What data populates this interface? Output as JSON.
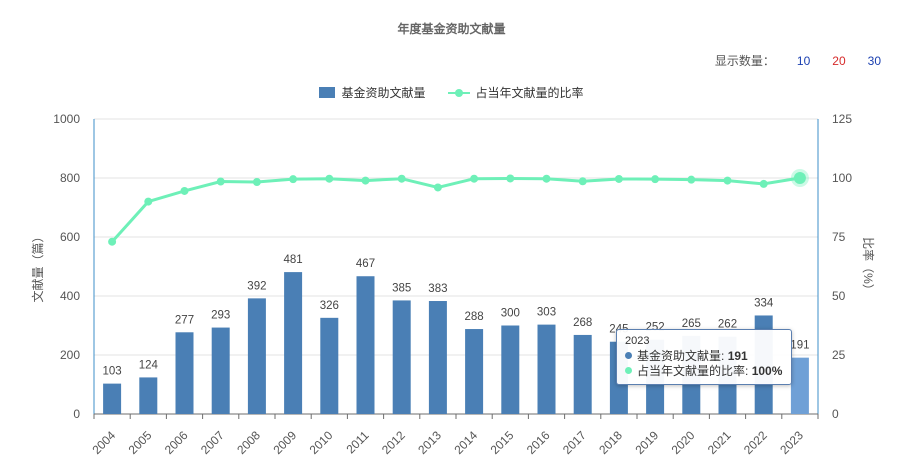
{
  "title": "年度基金资助文献量",
  "count_selector": {
    "label": "显示数量：",
    "options": [
      {
        "label": "10",
        "color": "#1a3fb0"
      },
      {
        "label": "20",
        "color": "#d62a2a"
      },
      {
        "label": "30",
        "color": "#1a3fb0"
      }
    ]
  },
  "colors": {
    "bar": "#4a7fb5",
    "bar_hover": "#6fa0d6",
    "line": "#6ef0b8",
    "axis": "#3d8fc9"
  },
  "chart_data": {
    "type": "bar",
    "categories": [
      "2004",
      "2005",
      "2006",
      "2007",
      "2008",
      "2009",
      "2010",
      "2011",
      "2012",
      "2013",
      "2014",
      "2015",
      "2016",
      "2017",
      "2018",
      "2019",
      "2020",
      "2021",
      "2022",
      "2023"
    ],
    "series": [
      {
        "name": "基金资助文献量",
        "type": "bar",
        "axis": "left",
        "values": [
          103,
          124,
          277,
          293,
          392,
          481,
          326,
          467,
          385,
          383,
          288,
          300,
          303,
          268,
          245,
          252,
          265,
          262,
          334,
          191
        ]
      },
      {
        "name": "占当年文献量的比率",
        "type": "line",
        "axis": "right",
        "values": [
          73,
          90,
          94.5,
          98.5,
          98.3,
          99.5,
          99.7,
          98.9,
          99.7,
          96,
          99.7,
          99.8,
          99.7,
          98.6,
          99.6,
          99.5,
          99.3,
          98.9,
          97.5,
          100
        ]
      }
    ],
    "ylabel": "文献量（篇）",
    "ylabel_right": "比率（%）",
    "ylim": [
      0,
      1000
    ],
    "yticks": [
      0,
      200,
      400,
      600,
      800,
      1000
    ],
    "ylim_right": [
      0,
      125
    ],
    "yticks_right": [
      0,
      25,
      50,
      75,
      100,
      125
    ],
    "grid": true,
    "legend": "top-center",
    "highlight_index": 19
  },
  "tooltip": {
    "year": "2023",
    "rows": [
      {
        "label": "基金资助文献量:",
        "value": "191"
      },
      {
        "label": "占当年文献量的比率:",
        "value": "100%"
      }
    ]
  }
}
